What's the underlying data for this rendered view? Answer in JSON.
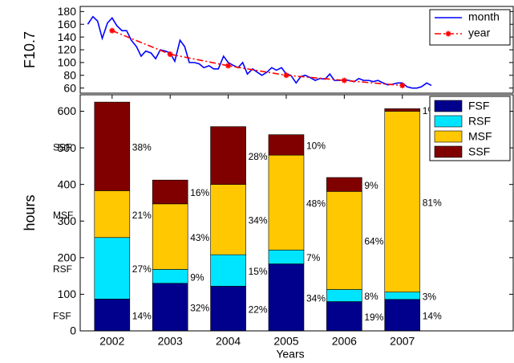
{
  "chart_data": [
    {
      "type": "line",
      "ylabel": "F10.7",
      "xlim": [
        2001.45,
        2008.91
      ],
      "ylim": [
        52,
        188
      ],
      "yticks": [
        60,
        80,
        100,
        120,
        140,
        160,
        180
      ],
      "legend": "upper right",
      "series": [
        {
          "name": "month",
          "color": "#0000ff",
          "style": "solid",
          "x": [
            2001.58,
            2001.67,
            2001.75,
            2001.83,
            2001.92,
            2002.0,
            2002.08,
            2002.17,
            2002.25,
            2002.33,
            2002.42,
            2002.5,
            2002.58,
            2002.67,
            2002.75,
            2002.83,
            2002.92,
            2003.0,
            2003.08,
            2003.17,
            2003.25,
            2003.33,
            2003.42,
            2003.5,
            2003.58,
            2003.67,
            2003.75,
            2003.83,
            2003.92,
            2004.0,
            2004.08,
            2004.17,
            2004.25,
            2004.33,
            2004.42,
            2004.5,
            2004.58,
            2004.67,
            2004.75,
            2004.83,
            2004.92,
            2005.0,
            2005.08,
            2005.17,
            2005.25,
            2005.33,
            2005.42,
            2005.5,
            2005.58,
            2005.67,
            2005.75,
            2005.83,
            2005.92,
            2006.0,
            2006.08,
            2006.17,
            2006.25,
            2006.33,
            2006.42,
            2006.5,
            2006.58,
            2006.67,
            2006.75,
            2006.83,
            2006.92,
            2007.0,
            2007.08,
            2007.17,
            2007.25,
            2007.33,
            2007.42,
            2007.5
          ],
          "values": [
            160,
            172,
            165,
            138,
            162,
            170,
            158,
            150,
            150,
            135,
            125,
            110,
            118,
            115,
            106,
            120,
            118,
            115,
            102,
            135,
            125,
            100,
            100,
            98,
            92,
            95,
            90,
            90,
            110,
            100,
            96,
            92,
            100,
            82,
            90,
            85,
            80,
            85,
            92,
            88,
            92,
            82,
            80,
            68,
            78,
            80,
            76,
            72,
            75,
            74,
            82,
            72,
            72,
            73,
            72,
            70,
            75,
            72,
            72,
            70,
            72,
            68,
            65,
            66,
            68,
            68,
            62,
            60,
            60,
            62,
            68,
            64
          ]
        },
        {
          "name": "year",
          "color": "#ff0000",
          "style": "dashdot",
          "marker": "star",
          "x": [
            2002,
            2003,
            2004,
            2005,
            2006,
            2007
          ],
          "values": [
            150,
            113,
            95,
            80,
            72,
            64
          ]
        }
      ]
    },
    {
      "type": "bar",
      "stacked": true,
      "xlabel": "Years",
      "ylabel": "hours",
      "xlim": [
        2001.45,
        2008.91
      ],
      "ylim": [
        0,
        645
      ],
      "x": [
        2002,
        2003,
        2004,
        2005,
        2006,
        2007
      ],
      "xticks": [
        2002,
        2003,
        2004,
        2005,
        2006,
        2007
      ],
      "yticks": [
        0,
        100,
        200,
        300,
        400,
        500,
        600
      ],
      "legend": "upper right",
      "series": [
        {
          "name": "FSF",
          "color": "#00008c",
          "values": [
            87,
            130,
            122,
            183,
            80,
            86
          ],
          "percent_labels": [
            "14%",
            "32%",
            "22%",
            "34%",
            "19%",
            "14%"
          ]
        },
        {
          "name": "RSF",
          "color": "#00e5ff",
          "values": [
            168,
            38,
            86,
            38,
            33,
            20
          ],
          "percent_labels": [
            "27%",
            "9%",
            "15%",
            "7%",
            "8%",
            "3%"
          ]
        },
        {
          "name": "MSF",
          "color": "#ffc800",
          "values": [
            128,
            179,
            192,
            259,
            268,
            494
          ],
          "percent_labels": [
            "21%",
            "43%",
            "34%",
            "48%",
            "64%",
            "81%"
          ]
        },
        {
          "name": "SSF",
          "color": "#800000",
          "values": [
            242,
            65,
            158,
            56,
            38,
            7
          ],
          "percent_labels": [
            "38%",
            "16%",
            "28%",
            "10%",
            "9%",
            "1%"
          ]
        }
      ]
    }
  ]
}
